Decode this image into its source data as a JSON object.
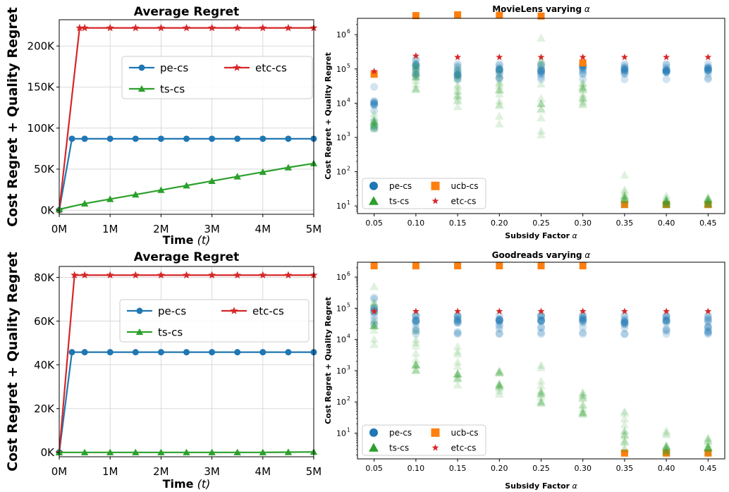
{
  "chart_data": [
    {
      "type": "line",
      "title": "Average Regret",
      "xlabel_main": "Time",
      "xlabel_symbol": "(t)",
      "ylabel": "Cost Regret + Quality Regret",
      "xlim": [
        0,
        5000000
      ],
      "ylim": [
        -5000,
        232000
      ],
      "x_ticks": [
        0,
        1000000,
        2000000,
        3000000,
        4000000,
        5000000
      ],
      "x_tick_labels": [
        "0M",
        "1M",
        "2M",
        "3M",
        "4M",
        "5M"
      ],
      "y_ticks": [
        0,
        50000,
        100000,
        150000,
        200000
      ],
      "y_tick_labels": [
        "0K",
        "50K",
        "100K",
        "150K",
        "200K"
      ],
      "grid": true,
      "legend_position": "upper-right",
      "legend_columns": 2,
      "series": [
        {
          "name": "pe-cs",
          "color": "#1f77b4",
          "marker": "circle",
          "x": [
            0,
            250000,
            500000,
            1000000,
            1500000,
            2000000,
            2500000,
            3000000,
            3500000,
            4000000,
            4500000,
            5000000
          ],
          "y": [
            0,
            87000,
            87000,
            87000,
            87000,
            87000,
            87000,
            87000,
            87000,
            87000,
            87000,
            87000
          ]
        },
        {
          "name": "etc-cs",
          "color": "#d62728",
          "marker": "star",
          "x": [
            0,
            400000,
            500000,
            1000000,
            1500000,
            2000000,
            2500000,
            3000000,
            3500000,
            4000000,
            4500000,
            5000000
          ],
          "y": [
            0,
            222000,
            222000,
            222000,
            222000,
            222000,
            222000,
            222000,
            222000,
            222000,
            222000,
            222000
          ]
        },
        {
          "name": "ts-cs",
          "color": "#2ca02c",
          "marker": "triangle",
          "x": [
            0,
            500000,
            1000000,
            1500000,
            2000000,
            2500000,
            3000000,
            3500000,
            4000000,
            4500000,
            5000000
          ],
          "y": [
            1000,
            8000,
            13500,
            19000,
            24500,
            30000,
            35500,
            41000,
            46500,
            52000,
            57000
          ]
        }
      ]
    },
    {
      "type": "scatter",
      "title": "MovieLens varying",
      "title_symbol": "α",
      "xlabel": "Subsidy Factor",
      "xlabel_symbol": "α",
      "ylabel": "Cost Regret + Quality Regret",
      "yscale": "log",
      "xlim": [
        0.03,
        0.47
      ],
      "ylim": [
        6,
        3000000
      ],
      "x_ticks": [
        0.05,
        0.1,
        0.15,
        0.2,
        0.25,
        0.3,
        0.35,
        0.4,
        0.45
      ],
      "x_tick_labels": [
        "0.05",
        "0.10",
        "0.15",
        "0.20",
        "0.25",
        "0.30",
        "0.35",
        "0.40",
        "0.45"
      ],
      "y_ticks": [
        10,
        100,
        1000,
        10000,
        100000,
        1000000
      ],
      "y_tick_labels": [
        "10",
        "10",
        "10",
        "10",
        "10",
        "10"
      ],
      "y_tick_exponents": [
        "1",
        "2",
        "3",
        "4",
        "5",
        "6"
      ],
      "grid": false,
      "legend_position": "lower-left",
      "legend_columns": 2,
      "legend_order": [
        "pe-cs",
        "ucb-cs",
        "ts-cs",
        "etc-cs"
      ],
      "series": [
        {
          "name": "pe-cs",
          "color": "#1f77b4",
          "marker": "circle",
          "alpha": 0.2,
          "x": [
            0.05,
            0.1,
            0.15,
            0.2,
            0.25,
            0.3,
            0.35,
            0.4,
            0.45
          ],
          "y_spread": [
            [
              1800,
              30000
            ],
            [
              60000,
              200000
            ],
            [
              50000,
              140000
            ],
            [
              50000,
              140000
            ],
            [
              50000,
              140000
            ],
            [
              50000,
              140000
            ],
            [
              50000,
              140000
            ],
            [
              50000,
              140000
            ],
            [
              50000,
              140000
            ]
          ],
          "y_median": [
            10000,
            120000,
            90000,
            90000,
            90000,
            90000,
            90000,
            90000,
            90000
          ]
        },
        {
          "name": "ucb-cs",
          "color": "#ff7f0e",
          "marker": "square",
          "alpha": 1,
          "x": [
            0.05,
            0.1,
            0.15,
            0.2,
            0.25,
            0.3,
            0.35,
            0.4,
            0.45
          ],
          "y": [
            70000,
            3600000,
            3800000,
            3700000,
            3500000,
            150000,
            11,
            11,
            11
          ]
        },
        {
          "name": "ts-cs",
          "color": "#2ca02c",
          "marker": "triangle",
          "alpha": 0.15,
          "x": [
            0.05,
            0.1,
            0.15,
            0.2,
            0.25,
            0.3,
            0.35,
            0.4,
            0.45
          ],
          "y_spread": [
            [
              1800,
              5000
            ],
            [
              25000,
              150000
            ],
            [
              8000,
              110000
            ],
            [
              2500,
              100000
            ],
            [
              1200,
              800000
            ],
            [
              9000,
              40000
            ],
            [
              11,
              80
            ],
            [
              11,
              20
            ],
            [
              11,
              18
            ]
          ],
          "y_median": [
            2800,
            60000,
            30000,
            20000,
            15000,
            25000,
            20,
            13,
            12
          ]
        },
        {
          "name": "etc-cs",
          "color": "#d62728",
          "marker": "star",
          "alpha": 1,
          "x": [
            0.05,
            0.1,
            0.15,
            0.2,
            0.25,
            0.3,
            0.35,
            0.4,
            0.45
          ],
          "y": [
            85000,
            240000,
            220000,
            220000,
            220000,
            220000,
            220000,
            220000,
            220000
          ]
        }
      ]
    },
    {
      "type": "line",
      "title": "Average Regret",
      "xlabel_main": "Time",
      "xlabel_symbol": "(t)",
      "ylabel": "Cost Regret + Quality Regret",
      "xlim": [
        0,
        5000000
      ],
      "ylim": [
        -2000,
        85000
      ],
      "x_ticks": [
        0,
        1000000,
        2000000,
        3000000,
        4000000,
        5000000
      ],
      "x_tick_labels": [
        "0M",
        "1M",
        "2M",
        "3M",
        "4M",
        "5M"
      ],
      "y_ticks": [
        0,
        20000,
        40000,
        60000,
        80000
      ],
      "y_tick_labels": [
        "0K",
        "20K",
        "40K",
        "60K",
        "80K"
      ],
      "grid": true,
      "legend_position": "center-right",
      "legend_columns": 2,
      "series": [
        {
          "name": "pe-cs",
          "color": "#1f77b4",
          "marker": "circle",
          "x": [
            0,
            250000,
            500000,
            1000000,
            1500000,
            2000000,
            2500000,
            3000000,
            3500000,
            4000000,
            4500000,
            5000000
          ],
          "y": [
            0,
            45800,
            45800,
            45800,
            45800,
            45800,
            45800,
            45800,
            45800,
            45800,
            45800,
            45800
          ]
        },
        {
          "name": "etc-cs",
          "color": "#d62728",
          "marker": "star",
          "x": [
            0,
            300000,
            500000,
            1000000,
            1500000,
            2000000,
            2500000,
            3000000,
            3500000,
            4000000,
            4500000,
            5000000
          ],
          "y": [
            0,
            81000,
            81000,
            81000,
            81000,
            81000,
            81000,
            81000,
            81000,
            81000,
            81000,
            81000
          ]
        },
        {
          "name": "ts-cs",
          "color": "#2ca02c",
          "marker": "triangle",
          "x": [
            0,
            500000,
            1000000,
            1500000,
            2000000,
            2500000,
            3000000,
            3500000,
            4000000,
            4500000,
            5000000
          ],
          "y": [
            0,
            0,
            0,
            0,
            0,
            0,
            0,
            0,
            0,
            100,
            200
          ]
        }
      ]
    },
    {
      "type": "scatter",
      "title": "Goodreads varying",
      "title_symbol": "α",
      "xlabel": "Subsidy Factor",
      "xlabel_symbol": "α",
      "ylabel": "Cost Regret + Quality Regret",
      "yscale": "log",
      "xlim": [
        0.03,
        0.47
      ],
      "ylim": [
        1.5,
        3000000
      ],
      "x_ticks": [
        0.05,
        0.1,
        0.15,
        0.2,
        0.25,
        0.3,
        0.35,
        0.4,
        0.45
      ],
      "x_tick_labels": [
        "0.05",
        "0.10",
        "0.15",
        "0.20",
        "0.25",
        "0.30",
        "0.35",
        "0.40",
        "0.45"
      ],
      "y_ticks": [
        10,
        100,
        1000,
        10000,
        100000,
        1000000
      ],
      "y_tick_labels": [
        "10",
        "10",
        "10",
        "10",
        "10",
        "10"
      ],
      "y_tick_exponents": [
        "1",
        "2",
        "3",
        "4",
        "5",
        "6"
      ],
      "grid": false,
      "legend_position": "lower-left",
      "legend_columns": 2,
      "legend_order": [
        "pe-cs",
        "ucb-cs",
        "ts-cs",
        "etc-cs"
      ],
      "series": [
        {
          "name": "pe-cs",
          "color": "#1f77b4",
          "marker": "circle",
          "alpha": 0.2,
          "x": [
            0.05,
            0.1,
            0.15,
            0.2,
            0.25,
            0.3,
            0.35,
            0.4,
            0.45
          ],
          "y_spread": [
            [
              30000,
              220000
            ],
            [
              15000,
              60000
            ],
            [
              15000,
              60000
            ],
            [
              15000,
              60000
            ],
            [
              15000,
              60000
            ],
            [
              15000,
              60000
            ],
            [
              15000,
              60000
            ],
            [
              15000,
              60000
            ],
            [
              15000,
              60000
            ]
          ],
          "y_median": [
            90000,
            40000,
            40000,
            40000,
            40000,
            40000,
            40000,
            40000,
            40000
          ]
        },
        {
          "name": "ucb-cs",
          "color": "#ff7f0e",
          "marker": "square",
          "alpha": 1,
          "x": [
            0.05,
            0.1,
            0.15,
            0.2,
            0.25,
            0.3,
            0.35,
            0.4,
            0.45
          ],
          "y": [
            2300000,
            2300000,
            2300000,
            2300000,
            2300000,
            2300000,
            2.3,
            2.3,
            2.3
          ]
        },
        {
          "name": "ts-cs",
          "color": "#2ca02c",
          "marker": "triangle",
          "alpha": 0.15,
          "x": [
            0.05,
            0.1,
            0.15,
            0.2,
            0.25,
            0.3,
            0.35,
            0.4,
            0.45
          ],
          "y_spread": [
            [
              7000,
              500000
            ],
            [
              1000,
              20000
            ],
            [
              350,
              6000
            ],
            [
              180,
              1000
            ],
            [
              90,
              1500
            ],
            [
              40,
              200
            ],
            [
              3,
              50
            ],
            [
              2.5,
              12
            ],
            [
              2.5,
              7
            ]
          ],
          "y_median": [
            40000,
            2500,
            800,
            350,
            180,
            80,
            8,
            4,
            3.5
          ]
        },
        {
          "name": "etc-cs",
          "color": "#d62728",
          "marker": "star",
          "alpha": 1,
          "x": [
            0.05,
            0.1,
            0.15,
            0.2,
            0.25,
            0.3,
            0.35,
            0.4,
            0.45
          ],
          "y": [
            80000,
            80000,
            80000,
            80000,
            80000,
            80000,
            80000,
            80000,
            80000
          ]
        }
      ]
    }
  ]
}
